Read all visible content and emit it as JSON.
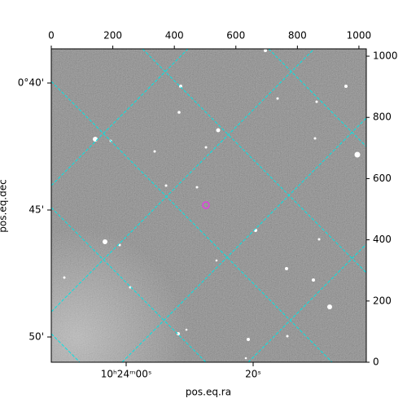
{
  "chart_data": {
    "type": "image",
    "xlabel": "pos.eq.ra",
    "ylabel": "pos.eq.dec",
    "xlim": [
      0,
      1024
    ],
    "ylim": [
      0,
      1024
    ],
    "xticks": [
      0,
      200,
      400,
      600,
      800,
      1000
    ],
    "yticks": [
      0,
      200,
      400,
      600,
      800,
      1000
    ],
    "ra_labels": [
      "10ʰ24ᵐ00ˢ",
      "20ˢ"
    ],
    "dec_labels": [
      "0°40'",
      "45'",
      "50'"
    ]
  }
}
